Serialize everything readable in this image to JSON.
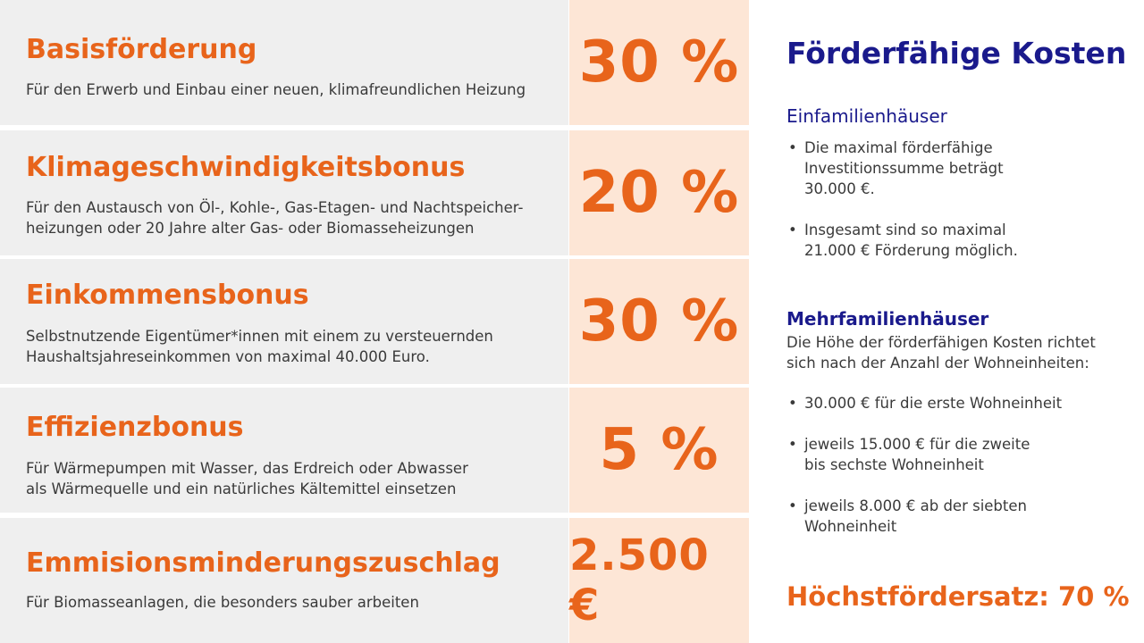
{
  "colors": {
    "accent_orange": "#e8641b",
    "navy": "#1a1a8c",
    "row_bg": "#efefef",
    "pct_bg": "#fde6d6"
  },
  "rows": [
    {
      "title": "Basisförderung",
      "desc1": "Für den Erwerb und Einbau einer neuen, klimafreundlichen Heizung",
      "desc2": "",
      "value": "30 %"
    },
    {
      "title": "Klimageschwindigkeitsbonus",
      "desc1": "Für den Austausch von Öl-, Kohle-, Gas-Etagen- und Nachtspeicher-",
      "desc2": "heizungen oder 20 Jahre alter Gas- oder Biomasseheizungen",
      "value": "20 %"
    },
    {
      "title": "Einkommensbonus",
      "desc1": "Selbstnutzende Eigentümer*innen mit einem zu versteuernden",
      "desc2": "Haushaltsjahreseinkommen von maximal 40.000 Euro.",
      "value": "30 %"
    },
    {
      "title": "Effizienzbonus",
      "desc1": "Für Wärmepumpen mit Wasser, das Erdreich oder Abwasser",
      "desc2": "als Wärmequelle und ein natürliches Kältemittel einsetzen",
      "value": "5 %"
    },
    {
      "title": "Emmisionsminderungszuschlag",
      "desc1": "Für Biomasseanlagen, die besonders sauber arbeiten",
      "desc2": "",
      "value": "2.500 €"
    }
  ],
  "right": {
    "heading": "Förderfähige Kosten",
    "efh": {
      "title": "Einfamilienhäuser",
      "bullets": [
        [
          "Die maximal förderfähige",
          "Investitionssumme beträgt",
          "30.000 €."
        ],
        [
          "Insgesamt sind so maximal",
          "21.000 € Förderung möglich."
        ]
      ]
    },
    "mfh": {
      "title": "Mehrfamilienhäuser",
      "intro1": "Die Höhe der förderfähigen Kosten richtet",
      "intro2": "sich nach der Anzahl der Wohneinheiten:",
      "bullets": [
        [
          "30.000 € für die erste Wohneinheit"
        ],
        [
          "jeweils 15.000 € für die zweite",
          "bis sechste Wohneinheit"
        ],
        [
          "jeweils 8.000 € ab der siebten",
          "Wohneinheit"
        ]
      ]
    },
    "max_rate": "Höchstfördersatz: 70 %"
  }
}
